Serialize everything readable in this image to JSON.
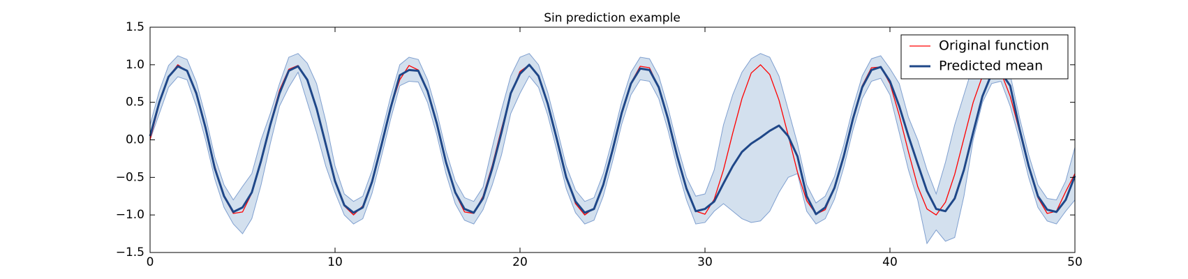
{
  "chart_data": {
    "type": "line",
    "title": "Sin prediction example",
    "x": [
      0,
      0.5,
      1,
      1.5,
      2,
      2.5,
      3,
      3.5,
      4,
      4.5,
      5,
      5.5,
      6,
      6.5,
      7,
      7.5,
      8,
      8.5,
      9,
      9.5,
      10,
      10.5,
      11,
      11.5,
      12,
      12.5,
      13,
      13.5,
      14,
      14.5,
      15,
      15.5,
      16,
      16.5,
      17,
      17.5,
      18,
      18.5,
      19,
      19.5,
      20,
      20.5,
      21,
      21.5,
      22,
      22.5,
      23,
      23.5,
      24,
      24.5,
      25,
      25.5,
      26,
      26.5,
      27,
      27.5,
      28,
      28.5,
      29,
      29.5,
      30,
      30.5,
      31,
      31.5,
      32,
      32.5,
      33,
      33.5,
      34,
      34.5,
      35,
      35.5,
      36,
      36.5,
      37,
      37.5,
      38,
      38.5,
      39,
      39.5,
      40,
      40.5,
      41,
      41.5,
      42,
      42.5,
      43,
      43.5,
      44,
      44.5,
      45,
      45.5,
      46,
      46.5,
      47,
      47.5,
      48,
      48.5,
      49,
      49.5,
      50
    ],
    "series": [
      {
        "name": "Original function",
        "color": "#ff0000",
        "width": 1.3,
        "values": [
          0,
          0.48,
          0.84,
          1.0,
          0.91,
          0.6,
          0.14,
          -0.35,
          -0.76,
          -0.98,
          -0.96,
          -0.71,
          -0.28,
          0.22,
          0.66,
          0.94,
          0.99,
          0.8,
          0.41,
          -0.08,
          -0.54,
          -0.88,
          -1.0,
          -0.88,
          -0.54,
          -0.07,
          0.42,
          0.8,
          0.99,
          0.93,
          0.65,
          0.21,
          -0.29,
          -0.71,
          -0.96,
          -0.98,
          -0.75,
          -0.34,
          0.15,
          0.61,
          0.91,
          1.0,
          0.84,
          0.47,
          -0.01,
          -0.49,
          -0.85,
          -1.0,
          -0.91,
          -0.59,
          -0.13,
          0.36,
          0.76,
          0.98,
          0.96,
          0.7,
          0.27,
          -0.23,
          -0.66,
          -0.95,
          -0.99,
          -0.79,
          -0.4,
          0.09,
          0.55,
          0.89,
          1.0,
          0.87,
          0.53,
          0.06,
          -0.43,
          -0.81,
          -0.99,
          -0.93,
          -0.64,
          -0.2,
          0.3,
          0.72,
          0.96,
          0.97,
          0.75,
          0.33,
          -0.16,
          -0.62,
          -0.92,
          -1.0,
          -0.83,
          -0.46,
          0.02,
          0.5,
          0.85,
          1.0,
          0.9,
          0.58,
          0.12,
          -0.37,
          -0.77,
          -0.98,
          -0.95,
          -0.69,
          -0.45
        ]
      },
      {
        "name": "Predicted mean",
        "color": "#1f4788",
        "width": 3,
        "values": [
          0.05,
          0.5,
          0.84,
          0.98,
          0.92,
          0.62,
          0.16,
          -0.38,
          -0.75,
          -0.96,
          -0.9,
          -0.7,
          -0.28,
          0.2,
          0.62,
          0.92,
          0.98,
          0.8,
          0.42,
          -0.06,
          -0.55,
          -0.87,
          -0.97,
          -0.9,
          -0.56,
          -0.08,
          0.42,
          0.86,
          0.93,
          0.92,
          0.65,
          0.22,
          -0.3,
          -0.7,
          -0.92,
          -0.97,
          -0.78,
          -0.38,
          0.1,
          0.62,
          0.88,
          1.0,
          0.85,
          0.48,
          0.0,
          -0.5,
          -0.82,
          -0.97,
          -0.92,
          -0.6,
          -0.14,
          0.36,
          0.75,
          0.95,
          0.93,
          0.7,
          0.28,
          -0.22,
          -0.65,
          -0.95,
          -0.92,
          -0.82,
          -0.58,
          -0.35,
          -0.16,
          -0.05,
          0.03,
          0.12,
          0.19,
          0.05,
          -0.22,
          -0.75,
          -0.99,
          -0.9,
          -0.64,
          -0.22,
          0.28,
          0.7,
          0.93,
          0.97,
          0.78,
          0.45,
          0.05,
          -0.32,
          -0.68,
          -0.92,
          -0.95,
          -0.78,
          -0.4,
          0.1,
          0.58,
          0.88,
          0.9,
          0.72,
          0.15,
          -0.35,
          -0.75,
          -0.93,
          -0.96,
          -0.8,
          -0.48
        ]
      }
    ],
    "band": {
      "color": "#d3e0ee",
      "edge_color": "#7f9fcf",
      "upper": [
        0.2,
        0.65,
        0.99,
        1.12,
        1.07,
        0.77,
        0.31,
        -0.23,
        -0.6,
        -0.8,
        -0.62,
        -0.45,
        0.0,
        0.35,
        0.75,
        1.1,
        1.15,
        1.02,
        0.75,
        0.25,
        -0.35,
        -0.72,
        -0.82,
        -0.75,
        -0.41,
        0.07,
        0.57,
        1.0,
        1.1,
        1.07,
        0.8,
        0.37,
        -0.15,
        -0.55,
        -0.77,
        -0.82,
        -0.63,
        -0.1,
        0.4,
        0.85,
        1.1,
        1.15,
        1.0,
        0.63,
        0.15,
        -0.35,
        -0.67,
        -0.82,
        -0.77,
        -0.45,
        0.01,
        0.51,
        0.9,
        1.1,
        1.08,
        0.85,
        0.43,
        -0.07,
        -0.5,
        -0.75,
        -0.72,
        -0.4,
        0.2,
        0.6,
        0.9,
        1.08,
        1.15,
        1.1,
        0.85,
        0.4,
        -0.05,
        -0.6,
        -0.84,
        -0.75,
        -0.49,
        -0.07,
        0.43,
        0.85,
        1.08,
        1.12,
        0.95,
        0.75,
        0.3,
        0.0,
        -0.4,
        -0.72,
        -0.3,
        0.2,
        0.6,
        1.0,
        1.2,
        1.1,
        1.0,
        0.87,
        0.3,
        -0.2,
        -0.6,
        -0.78,
        -0.8,
        -0.55,
        -0.1
      ],
      "lower": [
        0.0,
        0.35,
        0.7,
        0.84,
        0.8,
        0.45,
        0.0,
        -0.52,
        -0.9,
        -1.12,
        -1.25,
        -1.05,
        -0.6,
        -0.05,
        0.45,
        0.7,
        0.9,
        0.5,
        0.1,
        -0.35,
        -0.7,
        -1.0,
        -1.12,
        -1.05,
        -0.71,
        -0.23,
        0.27,
        0.72,
        0.78,
        0.77,
        0.5,
        0.07,
        -0.45,
        -0.85,
        -1.07,
        -1.12,
        -0.93,
        -0.6,
        -0.2,
        0.35,
        0.62,
        0.85,
        0.7,
        0.33,
        -0.15,
        -0.65,
        -0.97,
        -1.12,
        -1.07,
        -0.75,
        -0.29,
        0.21,
        0.6,
        0.8,
        0.78,
        0.55,
        0.13,
        -0.37,
        -0.8,
        -1.12,
        -1.1,
        -0.95,
        -0.85,
        -0.95,
        -1.05,
        -1.1,
        -1.08,
        -0.95,
        -0.7,
        -0.5,
        -0.45,
        -0.95,
        -1.12,
        -1.05,
        -0.79,
        -0.37,
        0.13,
        0.55,
        0.78,
        0.82,
        0.6,
        0.1,
        -0.4,
        -0.8,
        -1.38,
        -1.2,
        -1.35,
        -1.3,
        -0.75,
        0.0,
        0.5,
        0.75,
        0.78,
        0.45,
        0.0,
        -0.5,
        -0.9,
        -1.08,
        -1.12,
        -0.95,
        -0.8
      ]
    },
    "xlim": [
      0,
      50
    ],
    "xticks": [
      0,
      10,
      20,
      30,
      40,
      50
    ],
    "ylim": [
      -1.5,
      1.5
    ],
    "yticks": [
      {
        "value": -1.5,
        "label": "−1.5"
      },
      {
        "value": -1.0,
        "label": "−1.0"
      },
      {
        "value": -0.5,
        "label": "−0.5"
      },
      {
        "value": 0,
        "label": "0.0"
      },
      0.5,
      {
        "value": 1.0,
        "label": "1.0"
      },
      1.5
    ],
    "grid": false,
    "legend": "upper right"
  }
}
